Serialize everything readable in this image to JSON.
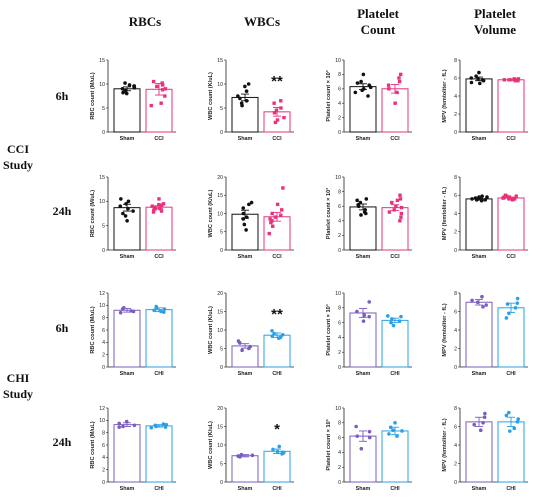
{
  "column_headers": [
    "RBCs",
    "WBCs",
    "Platelet\nCount",
    "Platelet\nVolume"
  ],
  "time_labels": [
    "6h",
    "24h",
    "6h",
    "24h"
  ],
  "study_labels": [
    "CCI\nStudy",
    "CHI\nStudy"
  ],
  "colors": {
    "sham_cci": "#111111",
    "cci": "#e8327c",
    "sham_chi": "#7b5cbf",
    "chi": "#2aa0e6"
  },
  "chart_data": [
    {
      "type": "bar",
      "row": 0,
      "col": 0,
      "ylabel": "RBC count (M/uL)",
      "ylim": [
        0,
        15
      ],
      "yticks": [
        0,
        5,
        10,
        15
      ],
      "categories": [
        "Sham",
        "CCI"
      ],
      "series": [
        {
          "values": [
            9.0,
            8.9
          ],
          "sem": [
            0.4,
            1.2
          ],
          "points": [
            [
              9.0,
              9.5,
              8.5,
              9.8,
              8.2,
              9.2,
              8.7,
              10.2,
              8.0,
              9.6
            ],
            [
              8.8,
              9.5,
              6.0,
              10.2,
              5.5,
              9.0,
              9.8,
              7.5,
              10.5
            ]
          ]
        }
      ]
    },
    {
      "type": "bar",
      "row": 0,
      "col": 1,
      "ylabel": "WBC count (K/uL)",
      "ylim": [
        0,
        15
      ],
      "yticks": [
        0,
        5,
        10,
        15
      ],
      "categories": [
        "Sham",
        "CCI"
      ],
      "significance": "**",
      "series": [
        {
          "values": [
            7.2,
            4.2
          ],
          "sem": [
            0.7,
            0.9
          ],
          "points": [
            [
              7.5,
              10.0,
              8.5,
              6.5,
              5.5,
              9.5,
              6.0,
              7.0
            ],
            [
              4.5,
              2.5,
              6.5,
              3.0,
              5.0,
              2.0,
              6.0,
              4.0
            ]
          ]
        }
      ]
    },
    {
      "type": "bar",
      "row": 0,
      "col": 2,
      "ylabel": "Platelet count × 10³",
      "ylim": [
        0,
        10
      ],
      "yticks": [
        0,
        2,
        4,
        6,
        8,
        10
      ],
      "categories": [
        "Sham",
        "CCI"
      ],
      "series": [
        {
          "values": [
            6.3,
            6.0
          ],
          "sem": [
            0.4,
            0.6
          ],
          "points": [
            [
              6.5,
              8.0,
              5.0,
              6.0,
              7.0,
              5.5,
              6.8,
              6.2,
              5.8
            ],
            [
              6.0,
              7.5,
              4.0,
              8.0,
              6.5,
              5.5,
              7.0
            ]
          ]
        }
      ]
    },
    {
      "type": "bar",
      "row": 0,
      "col": 3,
      "ylabel": "MPV (femtoliter - fL)",
      "ylim": [
        0,
        8
      ],
      "yticks": [
        0,
        2,
        4,
        6,
        8
      ],
      "categories": [
        "Sham",
        "CCI"
      ],
      "series": [
        {
          "values": [
            5.9,
            5.8
          ],
          "sem": [
            0.2,
            0.1
          ],
          "points": [
            [
              5.8,
              6.2,
              5.5,
              6.6,
              5.9,
              5.4,
              6.0,
              5.7
            ],
            [
              5.8,
              5.9,
              5.7,
              5.8,
              5.9,
              5.8,
              5.7
            ]
          ]
        }
      ]
    },
    {
      "type": "bar",
      "row": 1,
      "col": 0,
      "ylabel": "RBC count (M/uL)",
      "ylim": [
        0,
        15
      ],
      "yticks": [
        0,
        5,
        10,
        15
      ],
      "categories": [
        "Sham",
        "CCI"
      ],
      "series": [
        {
          "values": [
            8.7,
            8.8
          ],
          "sem": [
            0.7,
            0.3
          ],
          "points": [
            [
              8.5,
              10.5,
              7.5,
              9.5,
              6.0,
              9.0,
              8.0,
              10.0,
              7.0
            ],
            [
              8.5,
              9.5,
              8.0,
              9.0,
              10.5,
              8.8,
              9.2,
              7.8,
              8.5,
              9.3,
              8.2
            ]
          ]
        }
      ]
    },
    {
      "type": "bar",
      "row": 1,
      "col": 1,
      "ylabel": "WBC count (K/uL)",
      "ylim": [
        0,
        20
      ],
      "yticks": [
        0,
        5,
        10,
        15,
        20
      ],
      "categories": [
        "Sham",
        "CCI"
      ],
      "series": [
        {
          "values": [
            9.8,
            9.1
          ],
          "sem": [
            1.1,
            1.2
          ],
          "points": [
            [
              10.0,
              13.0,
              7.0,
              11.5,
              5.5,
              9.0,
              12.5,
              8.5
            ],
            [
              9.0,
              17.0,
              11.0,
              6.5,
              8.0,
              10.0,
              12.5,
              7.5,
              4.5,
              9.5,
              8.5
            ]
          ]
        }
      ]
    },
    {
      "type": "bar",
      "row": 1,
      "col": 2,
      "ylabel": "Platelet count × 10³",
      "ylim": [
        0,
        10
      ],
      "yticks": [
        0,
        2,
        4,
        6,
        8,
        10
      ],
      "categories": [
        "Sham",
        "CCI"
      ],
      "series": [
        {
          "values": [
            5.9,
            5.8
          ],
          "sem": [
            0.4,
            0.4
          ],
          "points": [
            [
              6.0,
              7.0,
              5.0,
              6.5,
              5.5,
              6.8,
              5.2,
              6.2,
              4.8
            ],
            [
              5.5,
              7.5,
              4.0,
              6.5,
              5.0,
              7.0,
              6.0,
              4.5,
              5.8,
              6.8,
              5.2
            ]
          ]
        }
      ]
    },
    {
      "type": "bar",
      "row": 1,
      "col": 3,
      "ylabel": "MPV (femtoliter - fL)",
      "ylim": [
        0,
        8
      ],
      "yticks": [
        0,
        2,
        4,
        6,
        8
      ],
      "categories": [
        "Sham",
        "CCI"
      ],
      "series": [
        {
          "values": [
            5.6,
            5.7
          ],
          "sem": [
            0.1,
            0.1
          ],
          "points": [
            [
              5.6,
              5.8,
              5.5,
              5.7,
              5.9,
              5.4,
              5.6,
              5.8,
              5.5
            ],
            [
              5.7,
              5.9,
              5.6,
              5.8,
              5.5,
              6.0,
              5.7,
              5.6,
              5.8,
              5.9,
              5.6
            ]
          ]
        }
      ]
    },
    {
      "type": "bar",
      "row": 2,
      "col": 0,
      "ylabel": "RBC count (M/uL)",
      "ylim": [
        0,
        12
      ],
      "yticks": [
        0,
        2,
        4,
        6,
        8,
        10,
        12
      ],
      "categories": [
        "Sham",
        "CHI"
      ],
      "series": [
        {
          "values": [
            9.2,
            9.3
          ],
          "sem": [
            0.3,
            0.3
          ],
          "points": [
            [
              9.0,
              9.6,
              8.8,
              9.4,
              9.1
            ],
            [
              9.2,
              9.8,
              8.9,
              9.5,
              9.0,
              9.4
            ]
          ]
        }
      ]
    },
    {
      "type": "bar",
      "row": 2,
      "col": 1,
      "ylabel": "WBC count (K/uL)",
      "ylim": [
        0,
        20
      ],
      "yticks": [
        0,
        5,
        10,
        15,
        20
      ],
      "categories": [
        "Sham",
        "CHI"
      ],
      "significance": "**",
      "series": [
        {
          "values": [
            5.7,
            8.6
          ],
          "sem": [
            0.6,
            0.6
          ],
          "points": [
            [
              5.0,
              7.0,
              4.5,
              6.5,
              5.5
            ],
            [
              8.0,
              9.8,
              7.8,
              9.0,
              8.3,
              8.7
            ]
          ]
        }
      ]
    },
    {
      "type": "bar",
      "row": 2,
      "col": 2,
      "ylabel": "Platelet count × 10³",
      "ylim": [
        0,
        10
      ],
      "yticks": [
        0,
        2,
        4,
        6,
        8,
        10
      ],
      "categories": [
        "Sham",
        "CHI"
      ],
      "series": [
        {
          "values": [
            7.3,
            6.3
          ],
          "sem": [
            0.6,
            0.3
          ],
          "points": [
            [
              7.0,
              8.8,
              6.2,
              7.5,
              6.8
            ],
            [
              6.0,
              6.9,
              5.6,
              6.5,
              6.2,
              6.8
            ]
          ]
        }
      ]
    },
    {
      "type": "bar",
      "row": 2,
      "col": 3,
      "ylabel": "MPV (femtoliter - fL)",
      "ylim": [
        0,
        8
      ],
      "yticks": [
        0,
        2,
        4,
        6,
        8
      ],
      "categories": [
        "Sham",
        "CHI"
      ],
      "series": [
        {
          "values": [
            7.0,
            6.4
          ],
          "sem": [
            0.3,
            0.5
          ],
          "points": [
            [
              7.0,
              7.6,
              6.5,
              7.2,
              6.7
            ],
            [
              6.4,
              7.4,
              5.3,
              6.8,
              5.8,
              6.9
            ]
          ]
        }
      ]
    },
    {
      "type": "bar",
      "row": 3,
      "col": 0,
      "ylabel": "RBC count (M/uL)",
      "ylim": [
        0,
        12
      ],
      "yticks": [
        0,
        2,
        4,
        6,
        8,
        10,
        12
      ],
      "categories": [
        "Sham",
        "CHI"
      ],
      "series": [
        {
          "values": [
            9.3,
            9.1
          ],
          "sem": [
            0.3,
            0.2
          ],
          "points": [
            [
              9.0,
              9.8,
              9.2,
              9.5,
              8.9
            ],
            [
              9.0,
              9.4,
              8.8,
              9.2,
              9.3,
              8.9
            ]
          ]
        }
      ]
    },
    {
      "type": "bar",
      "row": 3,
      "col": 1,
      "ylabel": "WBC count (K/uL)",
      "ylim": [
        0,
        20
      ],
      "yticks": [
        0,
        5,
        10,
        15,
        20
      ],
      "categories": [
        "Sham",
        "CHI"
      ],
      "significance": "*",
      "series": [
        {
          "values": [
            7.1,
            8.3
          ],
          "sem": [
            0.3,
            0.6
          ],
          "points": [
            [
              7.0,
              7.4,
              6.8,
              7.2,
              7.0
            ],
            [
              8.0,
              9.6,
              7.6,
              8.8,
              8.2,
              7.9
            ]
          ]
        }
      ]
    },
    {
      "type": "bar",
      "row": 3,
      "col": 2,
      "ylabel": "Platelet count × 10³",
      "ylim": [
        0,
        10
      ],
      "yticks": [
        0,
        2,
        4,
        6,
        8,
        10
      ],
      "categories": [
        "Sham",
        "CHI"
      ],
      "series": [
        {
          "values": [
            6.2,
            6.9
          ],
          "sem": [
            0.7,
            0.5
          ],
          "points": [
            [
              6.0,
              7.5,
              4.5,
              6.8,
              6.2
            ],
            [
              7.0,
              8.0,
              6.2,
              7.4,
              6.5,
              6.9
            ]
          ]
        }
      ]
    },
    {
      "type": "bar",
      "row": 3,
      "col": 3,
      "ylabel": "MPV (femtoliter - fL)",
      "ylim": [
        0,
        8
      ],
      "yticks": [
        0,
        2,
        4,
        6,
        8
      ],
      "categories": [
        "Sham",
        "CHI"
      ],
      "series": [
        {
          "values": [
            6.5,
            6.5
          ],
          "sem": [
            0.5,
            0.5
          ],
          "points": [
            [
              6.4,
              7.4,
              5.6,
              7.0,
              6.2
            ],
            [
              6.5,
              7.5,
              5.5,
              7.2,
              5.8,
              6.8
            ]
          ]
        }
      ]
    }
  ]
}
